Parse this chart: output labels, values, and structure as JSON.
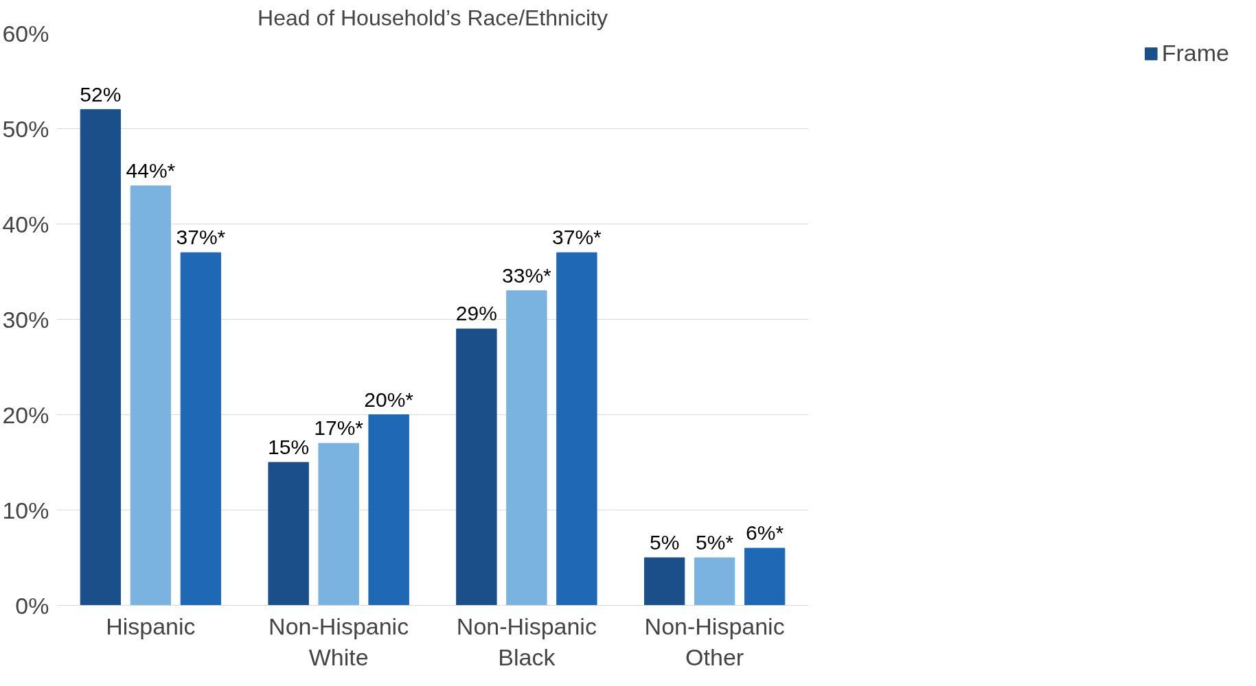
{
  "chart_data": {
    "type": "bar",
    "title": "Head of Household’s Race/Ethnicity",
    "categories": [
      "Hispanic",
      "Non-Hispanic\nWhite",
      "Non-Hispanic\nBlack",
      "Non-Hispanic\nOther"
    ],
    "series": [
      {
        "name": "Frame",
        "color": "#1b4f8a",
        "values": [
          52,
          15,
          29,
          5
        ],
        "value_labels": [
          "52%",
          "15%",
          "29%",
          "5%"
        ]
      },
      {
        "color": "#7ab3e0",
        "values": [
          44,
          17,
          33,
          5
        ],
        "value_labels": [
          "44%*",
          "17%*",
          "33%*",
          "5%*"
        ]
      },
      {
        "color": "#1f68b5",
        "values": [
          37,
          20,
          37,
          6
        ],
        "value_labels": [
          "37%*",
          "20%*",
          "37%*",
          "6%*"
        ]
      }
    ],
    "ylim": [
      0,
      60
    ],
    "yticks": [
      {
        "value": 0,
        "label": "0%"
      },
      {
        "value": 10,
        "label": "10%"
      },
      {
        "value": 20,
        "label": "20%"
      },
      {
        "value": 30,
        "label": "30%"
      },
      {
        "value": 40,
        "label": "40%"
      },
      {
        "value": 50,
        "label": "50%"
      },
      {
        "value": 60,
        "label": "60%"
      }
    ],
    "grid": "y",
    "legend": "right"
  }
}
